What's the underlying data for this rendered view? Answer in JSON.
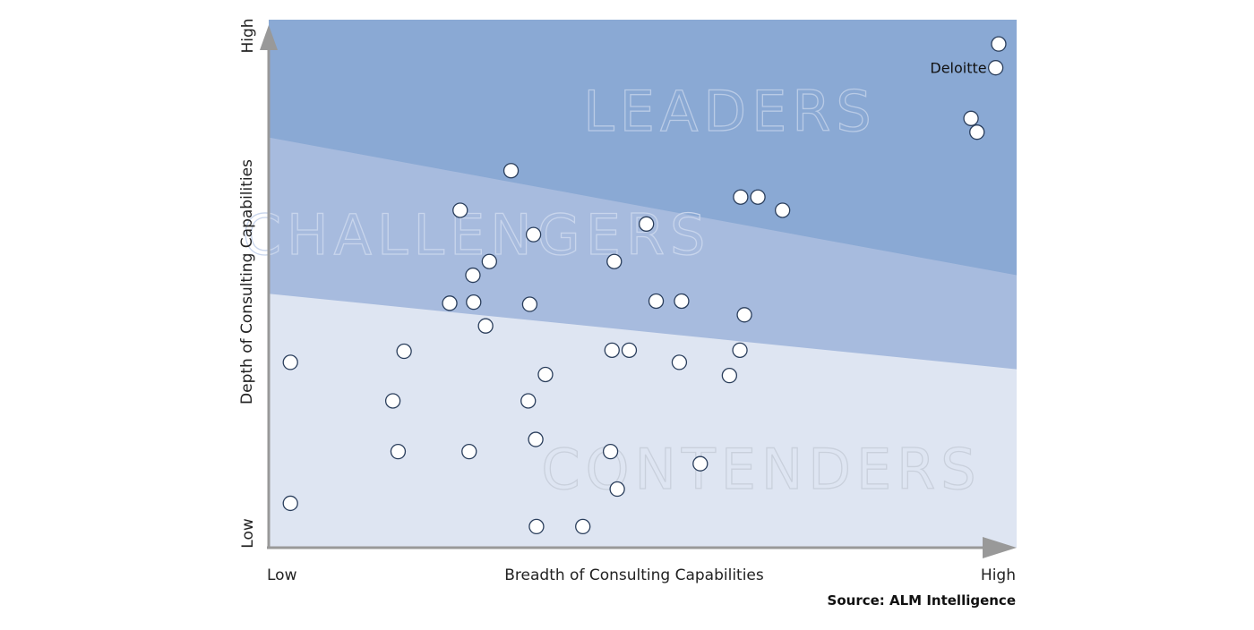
{
  "chart_data": {
    "type": "scatter",
    "title": "",
    "xlabel": "Breadth of Consulting Capabilities",
    "ylabel": "Depth of Consulting Capabilities",
    "x_tick_labels": {
      "low": "Low",
      "high": "High"
    },
    "y_tick_labels": {
      "low": "Low",
      "high": "High"
    },
    "xlim": [
      0,
      100
    ],
    "ylim": [
      0,
      100
    ],
    "grid": false,
    "legend": "none",
    "source": "Source: ALM Intelligence",
    "regions": [
      {
        "name": "LEADERS",
        "color": "#8aa9d4",
        "boundary_y_at_xmin": 77.7,
        "boundary_y_at_xmax": 51.6
      },
      {
        "name": "CHALLENGERS",
        "color": "#a7bbde",
        "boundary_y_at_xmin": 48.1,
        "boundary_y_at_xmax": 33.8
      },
      {
        "name": "CONTENDERS",
        "color": "#dee5f2"
      }
    ],
    "points": [
      {
        "x": 97.6,
        "y": 95.4
      },
      {
        "x": 97.2,
        "y": 90.9,
        "label": "Deloitte"
      },
      {
        "x": 93.9,
        "y": 81.3
      },
      {
        "x": 94.7,
        "y": 78.7
      },
      {
        "x": 32.4,
        "y": 71.4
      },
      {
        "x": 63.1,
        "y": 66.4
      },
      {
        "x": 65.4,
        "y": 66.4
      },
      {
        "x": 68.7,
        "y": 63.9
      },
      {
        "x": 25.6,
        "y": 63.9
      },
      {
        "x": 50.5,
        "y": 61.3
      },
      {
        "x": 35.4,
        "y": 59.3
      },
      {
        "x": 29.5,
        "y": 54.2
      },
      {
        "x": 46.2,
        "y": 54.2
      },
      {
        "x": 27.3,
        "y": 51.6
      },
      {
        "x": 24.2,
        "y": 46.3
      },
      {
        "x": 27.4,
        "y": 46.5
      },
      {
        "x": 34.9,
        "y": 46.1
      },
      {
        "x": 51.8,
        "y": 46.7
      },
      {
        "x": 55.2,
        "y": 46.7
      },
      {
        "x": 63.6,
        "y": 44.1
      },
      {
        "x": 29.0,
        "y": 42.0
      },
      {
        "x": 18.1,
        "y": 37.2
      },
      {
        "x": 45.9,
        "y": 37.4
      },
      {
        "x": 48.2,
        "y": 37.4
      },
      {
        "x": 63.0,
        "y": 37.4
      },
      {
        "x": 2.9,
        "y": 35.1
      },
      {
        "x": 54.9,
        "y": 35.1
      },
      {
        "x": 37.0,
        "y": 32.8
      },
      {
        "x": 61.6,
        "y": 32.6
      },
      {
        "x": 16.6,
        "y": 27.8
      },
      {
        "x": 34.7,
        "y": 27.8
      },
      {
        "x": 35.7,
        "y": 20.5
      },
      {
        "x": 17.3,
        "y": 18.2
      },
      {
        "x": 26.8,
        "y": 18.2
      },
      {
        "x": 45.7,
        "y": 18.2
      },
      {
        "x": 57.7,
        "y": 15.9
      },
      {
        "x": 46.6,
        "y": 11.1
      },
      {
        "x": 2.9,
        "y": 8.4
      },
      {
        "x": 35.8,
        "y": 4.0
      },
      {
        "x": 42.0,
        "y": 4.0
      }
    ]
  }
}
